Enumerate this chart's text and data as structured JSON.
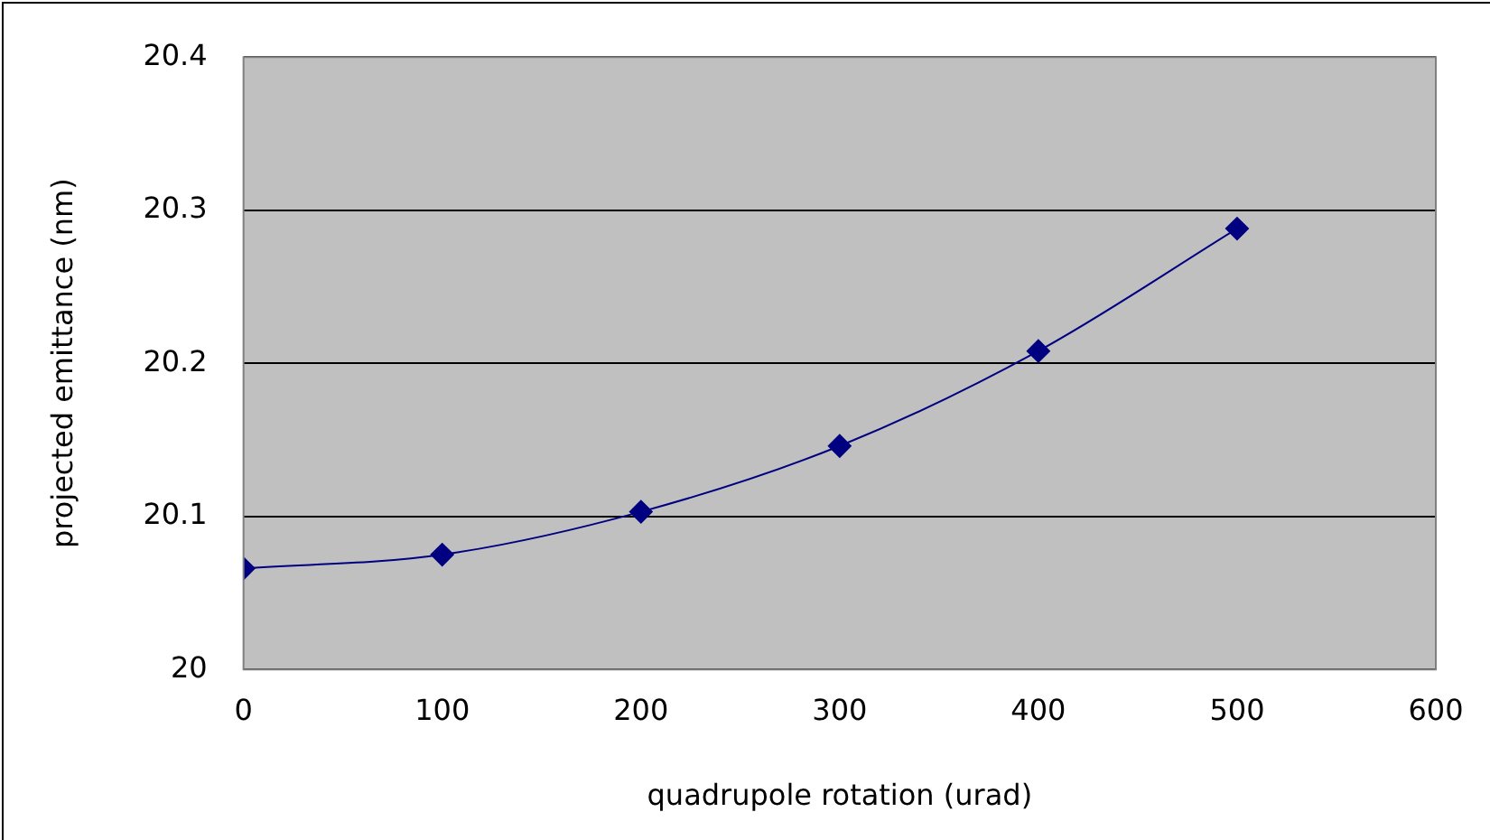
{
  "chart_data": {
    "type": "line",
    "xlabel": "quadrupole rotation (urad)",
    "ylabel": "projected emittance (nm)",
    "x": [
      0,
      100,
      200,
      300,
      400,
      500
    ],
    "series": [
      {
        "color": "#000080",
        "values": [
          20.066,
          20.075,
          20.103,
          20.146,
          20.208,
          20.288
        ]
      }
    ],
    "xlim": [
      0,
      600
    ],
    "xticks": [
      0,
      100,
      200,
      300,
      400,
      500,
      600
    ],
    "ylim": [
      20,
      20.4
    ],
    "yticks": [
      20,
      20.1,
      20.2,
      20.3,
      20.4
    ],
    "grid": "y",
    "legend": false,
    "marker": "diamond",
    "line_style": "solid"
  }
}
